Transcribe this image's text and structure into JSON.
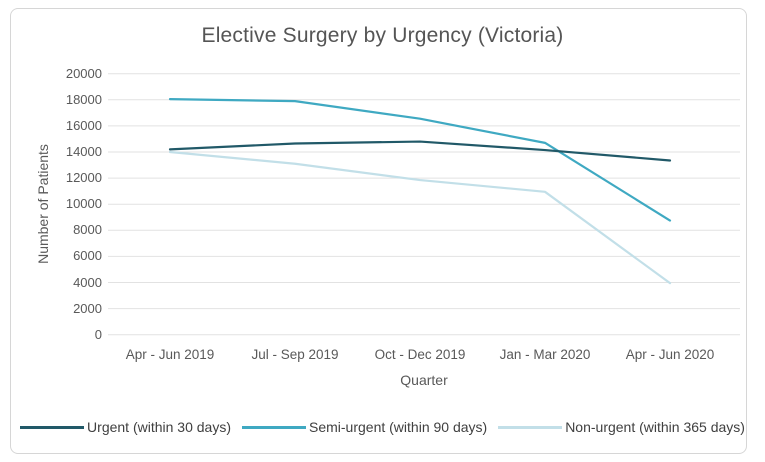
{
  "chart_data": {
    "type": "line",
    "title": "Elective Surgery by Urgency (Victoria)",
    "xlabel": "Quarter",
    "ylabel": "Number of Patients",
    "categories": [
      "Apr - Jun 2019",
      "Jul - Sep 2019",
      "Oct - Dec 2019",
      "Jan - Mar 2020",
      "Apr - Jun 2020"
    ],
    "series": [
      {
        "name": "Urgent (within 30 days)",
        "color": "#215968",
        "values": [
          14200,
          14650,
          14800,
          14150,
          13350
        ]
      },
      {
        "name": "Semi-urgent (within 90 days)",
        "color": "#3fa9c2",
        "values": [
          18050,
          17900,
          16550,
          14700,
          8750
        ]
      },
      {
        "name": "Non-urgent (within 365 days)",
        "color": "#c2dfe8",
        "values": [
          14000,
          13100,
          11850,
          10950,
          3950
        ]
      }
    ],
    "ylim": [
      0,
      20000
    ],
    "ytick_step": 2000,
    "grid": true,
    "legend_position": "bottom"
  },
  "colors": {
    "grid": "#e2e2e2",
    "axis_text": "#595959",
    "title_text": "#555555",
    "legend_text": "#404040",
    "card_border": "#d6d6d6",
    "background": "#ffffff"
  }
}
